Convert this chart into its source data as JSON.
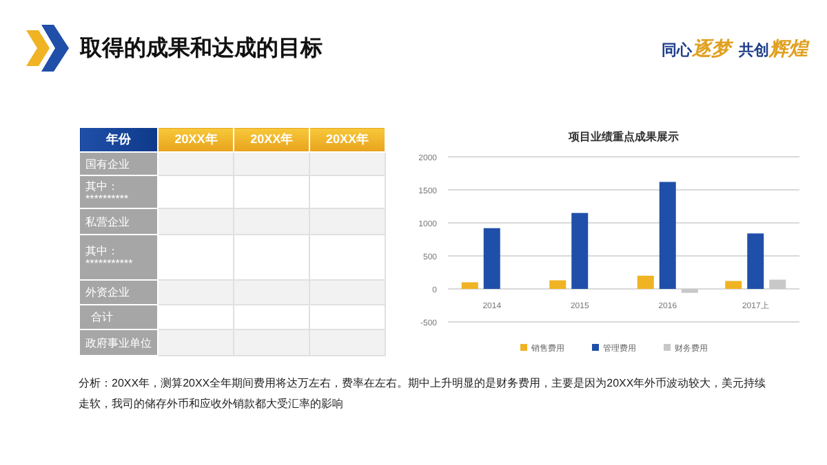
{
  "chart_data": [
    {
      "type": "other",
      "title": "取得的成果和达成的目标",
      "annotations": [
        "同心",
        "逐梦",
        "共创",
        "辉煌",
        "年份",
        "20XX年",
        "20XX年",
        "20XX年",
        "国有企业",
        "其中：",
        "**********",
        "私营企业",
        "其中：",
        "***********",
        "外资企业",
        "合计",
        "政府事业单位",
        "分析：20XX年，测算20XX全年期间费用将达万左右，费率在左右。期中上升明显的是财务费用，主要是因为20XX年外币波动较大，美元持续走软，我司的储存外币和应收外销款都大受汇率的影响"
      ]
    },
    {
      "type": "bar",
      "title": "项目业绩重点成果展示",
      "categories": [
        "2014",
        "2015",
        "2016",
        "2017上"
      ],
      "series": [
        {
          "name": "销售费用",
          "color": "#f0b323",
          "values": [
            100,
            130,
            200,
            120
          ]
        },
        {
          "name": "管理费用",
          "color": "#1f4fa8",
          "values": [
            920,
            1150,
            1620,
            840
          ]
        },
        {
          "name": "财务费用",
          "color": "#c8c8c8",
          "values": [
            0,
            0,
            -60,
            140
          ]
        }
      ],
      "ylim": [
        -500,
        2000
      ],
      "yticks": [
        -500,
        0,
        500,
        1000,
        1500,
        2000
      ],
      "grid": "y",
      "legend": "bottom"
    }
  ]
}
